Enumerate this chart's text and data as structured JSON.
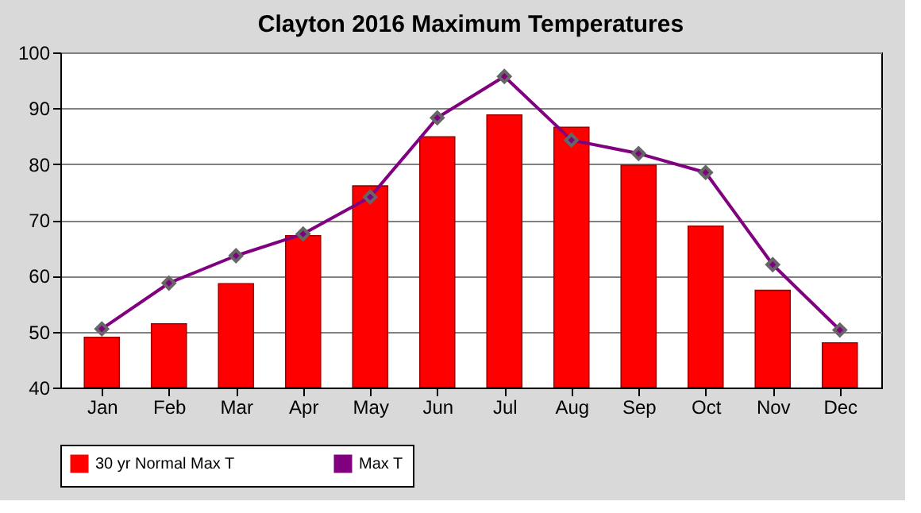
{
  "chart_data": {
    "type": "bar",
    "title": "Clayton 2016 Maximum Temperatures",
    "categories": [
      "Jan",
      "Feb",
      "Mar",
      "Apr",
      "May",
      "Jun",
      "Jul",
      "Aug",
      "Sep",
      "Oct",
      "Nov",
      "Dec"
    ],
    "series": [
      {
        "name": "30 yr Normal Max T",
        "color": "#ff0000",
        "values": [
          49.0,
          51.4,
          58.6,
          67.2,
          76.1,
          84.9,
          88.8,
          86.6,
          79.8,
          68.9,
          57.4,
          48.0
        ]
      },
      {
        "name": "Max T",
        "type": "line",
        "color": "#800080",
        "marker": "diamond",
        "values": [
          50.5,
          58.7,
          63.6,
          67.5,
          74.1,
          88.3,
          95.7,
          84.3,
          81.9,
          78.5,
          62.0,
          50.3
        ]
      }
    ],
    "ylim": [
      40,
      100
    ],
    "yticks": [
      40,
      50,
      60,
      70,
      80,
      90,
      100
    ],
    "grid": "y",
    "legend": "bottom"
  }
}
